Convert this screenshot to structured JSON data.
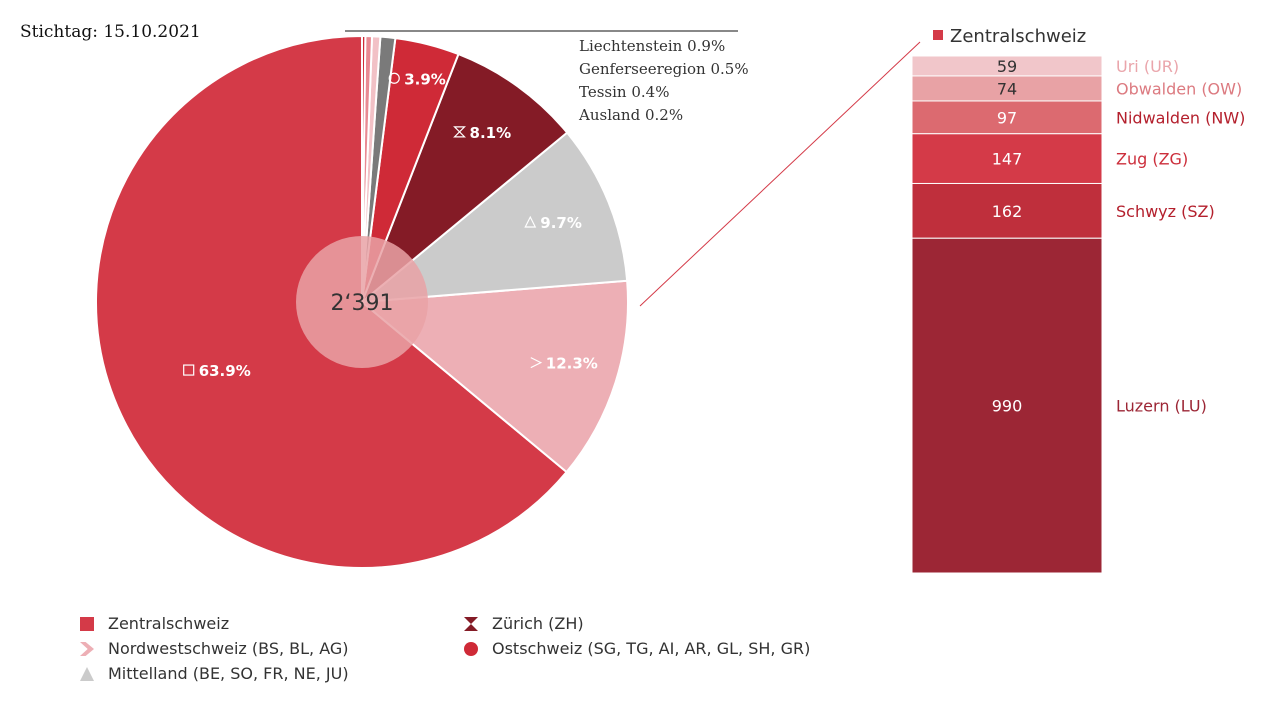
{
  "stichtag": "Stichtag: 15.10.2021",
  "center_total": "2‘391",
  "small_labels": [
    "Liechtenstein 0.9%",
    "Genferseeregion 0.5%",
    "Tessin 0.4%",
    "Ausland 0.2%"
  ],
  "colors": {
    "zentral": "#d43a48",
    "nordwest": "#edafb5",
    "mittelland": "#cbcbcb",
    "zuerich": "#841b26",
    "ost": "#cf2a37",
    "liechtenstein": "#7a7a7a",
    "genfersee": "#f2c1c6",
    "tessin": "#e98a93",
    "ausland": "#cf2a37",
    "center_disc": "#e9a2a6",
    "ur": "#f1c6ca",
    "ow": "#e8a2a5",
    "nw": "#dc6a70",
    "zg": "#d43a48",
    "sz": "#bf2f3c",
    "lu": "#9c2635"
  },
  "chart_data": [
    {
      "type": "pie",
      "title": "",
      "total": 2391,
      "slices": [
        {
          "name": "Zentralschweiz",
          "value": 63.9,
          "label": "63.9%",
          "symbol": "square-icon",
          "color_key": "zentral"
        },
        {
          "name": "Nordwestschweiz (BS, BL, AG)",
          "value": 12.3,
          "label": "12.3%",
          "symbol": "chevron-icon",
          "color_key": "nordwest"
        },
        {
          "name": "Mittelland (BE, SO, FR, NE, JU)",
          "value": 9.7,
          "label": "9.7%",
          "symbol": "triangle-icon",
          "color_key": "mittelland"
        },
        {
          "name": "Zürich (ZH)",
          "value": 8.1,
          "label": "8.1%",
          "symbol": "hourglass-icon",
          "color_key": "zuerich"
        },
        {
          "name": "Ostschweiz (SG, TG, AI, AR, GL, SH, GR)",
          "value": 3.9,
          "label": "3.9%",
          "symbol": "circle-icon",
          "color_key": "ost"
        },
        {
          "name": "Liechtenstein",
          "value": 0.9,
          "label": "",
          "color_key": "liechtenstein"
        },
        {
          "name": "Genferseeregion",
          "value": 0.5,
          "label": "",
          "color_key": "genfersee"
        },
        {
          "name": "Tessin",
          "value": 0.4,
          "label": "",
          "color_key": "tessin"
        },
        {
          "name": "Ausland",
          "value": 0.2,
          "label": "",
          "color_key": "ausland"
        }
      ]
    },
    {
      "type": "bar",
      "stacked": true,
      "title": "Zentralschweiz",
      "categories": [
        "Uri (UR)",
        "Obwalden (OW)",
        "Nidwalden (NW)",
        "Zug (ZG)",
        "Schwyz (SZ)",
        "Luzern (LU)"
      ],
      "values": [
        59,
        74,
        97,
        147,
        162,
        990
      ],
      "color_keys": [
        "ur",
        "ow",
        "nw",
        "zg",
        "sz",
        "lu"
      ],
      "value_text_colors": [
        "#333333",
        "#333333",
        "#ffffff",
        "#ffffff",
        "#ffffff",
        "#ffffff"
      ],
      "label_colors": [
        "#eaa5ab",
        "#dc7a80",
        "#b4202d",
        "#cc2f3c",
        "#b4202d",
        "#9c2635"
      ]
    }
  ],
  "legend": {
    "left": [
      {
        "label": "Zentralschweiz",
        "symbol": "square-icon",
        "color_key": "zentral"
      },
      {
        "label": "Nordwestschweiz (BS, BL, AG)",
        "symbol": "chevron-icon",
        "color_key": "nordwest"
      },
      {
        "label": "Mittelland (BE, SO, FR, NE, JU)",
        "symbol": "triangle-icon",
        "color_key": "mittelland"
      }
    ],
    "right": [
      {
        "label": "Zürich (ZH)",
        "symbol": "hourglass-icon",
        "color_key": "zuerich"
      },
      {
        "label": "Ostschweiz (SG, TG, AI, AR, GL, SH, GR)",
        "symbol": "circle-icon",
        "color_key": "ost"
      }
    ]
  }
}
